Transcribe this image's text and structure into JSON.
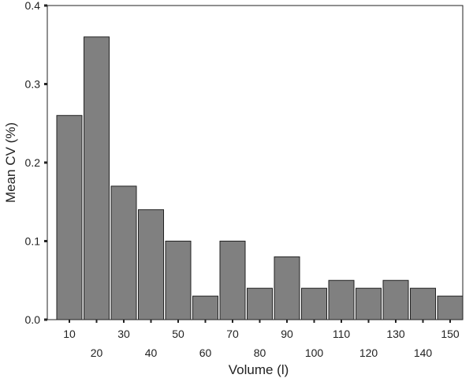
{
  "chart_data": {
    "type": "bar",
    "title": "",
    "xlabel": "Volume (l)",
    "ylabel": "Mean CV (%)",
    "categories": [
      "10",
      "20",
      "30",
      "40",
      "50",
      "60",
      "70",
      "80",
      "90",
      "100",
      "110",
      "120",
      "130",
      "140",
      "150"
    ],
    "values": [
      0.26,
      0.36,
      0.17,
      0.14,
      0.1,
      0.03,
      0.1,
      0.04,
      0.08,
      0.04,
      0.05,
      0.04,
      0.05,
      0.04,
      0.03
    ],
    "ylim": [
      0,
      0.4
    ],
    "yticks": [
      "0.0",
      "0.1",
      "0.2",
      "0.3",
      "0.4"
    ],
    "grid": false,
    "bar_color": "#808080",
    "bar_edge_color": "#222222"
  }
}
